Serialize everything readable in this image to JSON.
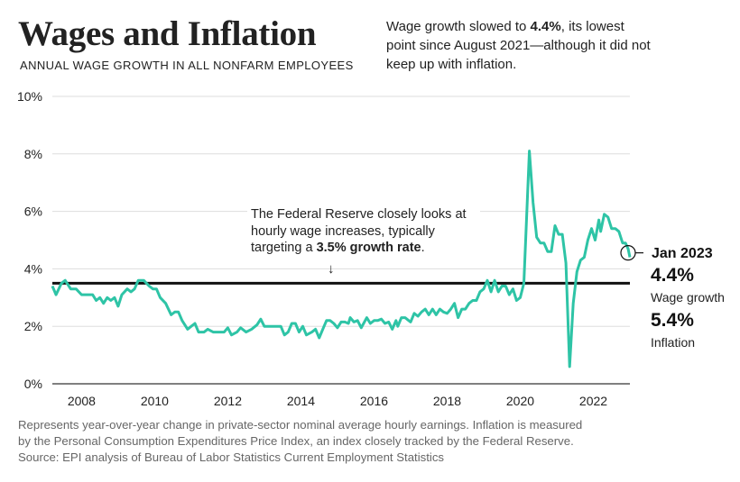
{
  "header": {
    "title": "Wages and Inflation",
    "subtitle": "ANNUAL WAGE GROWTH IN ALL NONFARM EMPLOYEES",
    "dek_before": "Wage growth slowed to ",
    "dek_bold": "4.4%",
    "dek_after": ", its lowest point since August 2021—although it did not keep up with inflation."
  },
  "note": {
    "before": "The Federal Reserve closely looks at hourly wage increases, typically targeting a ",
    "bold": "3.5% growth rate",
    "after": ".",
    "arrow": "↓"
  },
  "annotation": {
    "date": "Jan 2023",
    "wage_value": "4.4%",
    "wage_label": "Wage growth",
    "inflation_value": "5.4%",
    "inflation_label": "Inflation"
  },
  "footer": {
    "line1": "Represents year-over-year change in private-sector nominal average hourly earnings. Inflation is measured",
    "line2": "by the Personal Consumption Expenditures Price Index, an index closely tracked by the Federal Reserve.",
    "line3": "Source: EPI analysis of Bureau of Labor Statistics Current Employment Statistics"
  },
  "colors": {
    "line": "#2ec4a6",
    "target": "#111111",
    "grid": "#dddddd",
    "axis": "#333333"
  },
  "chart_data": {
    "type": "line",
    "title": "Wages and Inflation",
    "subtitle": "Annual wage growth in all nonfarm employees",
    "xlabel": "",
    "ylabel": "",
    "xlim": [
      2007.2,
      2023.0
    ],
    "ylim": [
      0,
      10
    ],
    "y_ticks": [
      {
        "value": 0,
        "label": "0%"
      },
      {
        "value": 2,
        "label": "2%"
      },
      {
        "value": 4,
        "label": "4%"
      },
      {
        "value": 6,
        "label": "6%"
      },
      {
        "value": 8,
        "label": "8%"
      },
      {
        "value": 10,
        "label": "10%"
      }
    ],
    "x_ticks": [
      {
        "value": 2008,
        "label": "2008"
      },
      {
        "value": 2010,
        "label": "2010"
      },
      {
        "value": 2012,
        "label": "2012"
      },
      {
        "value": 2014,
        "label": "2014"
      },
      {
        "value": 2016,
        "label": "2016"
      },
      {
        "value": 2018,
        "label": "2018"
      },
      {
        "value": 2020,
        "label": "2020"
      },
      {
        "value": 2022,
        "label": "2022"
      }
    ],
    "grid": true,
    "reference_line": {
      "value": 3.5,
      "label": "3.5% growth rate"
    },
    "series": [
      {
        "name": "Wage growth",
        "points": [
          [
            2007.2,
            3.4
          ],
          [
            2007.3,
            3.1
          ],
          [
            2007.45,
            3.5
          ],
          [
            2007.55,
            3.6
          ],
          [
            2007.7,
            3.3
          ],
          [
            2007.85,
            3.3
          ],
          [
            2008.0,
            3.1
          ],
          [
            2008.15,
            3.1
          ],
          [
            2008.3,
            3.1
          ],
          [
            2008.4,
            2.9
          ],
          [
            2008.5,
            3.0
          ],
          [
            2008.6,
            2.8
          ],
          [
            2008.7,
            3.0
          ],
          [
            2008.8,
            2.9
          ],
          [
            2008.9,
            3.0
          ],
          [
            2009.0,
            2.7
          ],
          [
            2009.1,
            3.1
          ],
          [
            2009.25,
            3.3
          ],
          [
            2009.35,
            3.2
          ],
          [
            2009.45,
            3.3
          ],
          [
            2009.55,
            3.6
          ],
          [
            2009.7,
            3.6
          ],
          [
            2009.85,
            3.4
          ],
          [
            2009.95,
            3.3
          ],
          [
            2010.05,
            3.3
          ],
          [
            2010.15,
            3.0
          ],
          [
            2010.3,
            2.8
          ],
          [
            2010.45,
            2.4
          ],
          [
            2010.55,
            2.5
          ],
          [
            2010.65,
            2.5
          ],
          [
            2010.75,
            2.2
          ],
          [
            2010.9,
            1.9
          ],
          [
            2011.0,
            2.0
          ],
          [
            2011.1,
            2.1
          ],
          [
            2011.2,
            1.8
          ],
          [
            2011.35,
            1.8
          ],
          [
            2011.45,
            1.9
          ],
          [
            2011.6,
            1.8
          ],
          [
            2011.75,
            1.8
          ],
          [
            2011.9,
            1.8
          ],
          [
            2012.0,
            1.95
          ],
          [
            2012.1,
            1.7
          ],
          [
            2012.25,
            1.8
          ],
          [
            2012.35,
            1.95
          ],
          [
            2012.5,
            1.8
          ],
          [
            2012.65,
            1.9
          ],
          [
            2012.8,
            2.05
          ],
          [
            2012.9,
            2.25
          ],
          [
            2013.0,
            2.0
          ],
          [
            2013.15,
            2.0
          ],
          [
            2013.3,
            2.0
          ],
          [
            2013.45,
            2.0
          ],
          [
            2013.55,
            1.7
          ],
          [
            2013.65,
            1.8
          ],
          [
            2013.75,
            2.1
          ],
          [
            2013.85,
            2.1
          ],
          [
            2013.95,
            1.8
          ],
          [
            2014.05,
            2.0
          ],
          [
            2014.15,
            1.7
          ],
          [
            2014.3,
            1.8
          ],
          [
            2014.4,
            1.9
          ],
          [
            2014.5,
            1.6
          ],
          [
            2014.6,
            1.9
          ],
          [
            2014.7,
            2.2
          ],
          [
            2014.8,
            2.2
          ],
          [
            2014.9,
            2.1
          ],
          [
            2015.0,
            1.95
          ],
          [
            2015.1,
            2.15
          ],
          [
            2015.2,
            2.15
          ],
          [
            2015.3,
            2.1
          ],
          [
            2015.35,
            2.3
          ],
          [
            2015.45,
            2.15
          ],
          [
            2015.55,
            2.2
          ],
          [
            2015.65,
            1.95
          ],
          [
            2015.8,
            2.3
          ],
          [
            2015.9,
            2.1
          ],
          [
            2016.0,
            2.2
          ],
          [
            2016.1,
            2.2
          ],
          [
            2016.2,
            2.25
          ],
          [
            2016.3,
            2.1
          ],
          [
            2016.4,
            2.15
          ],
          [
            2016.5,
            1.9
          ],
          [
            2016.6,
            2.2
          ],
          [
            2016.65,
            2.0
          ],
          [
            2016.75,
            2.3
          ],
          [
            2016.85,
            2.3
          ],
          [
            2016.95,
            2.2
          ],
          [
            2017.0,
            2.15
          ],
          [
            2017.1,
            2.45
          ],
          [
            2017.2,
            2.35
          ],
          [
            2017.3,
            2.5
          ],
          [
            2017.4,
            2.6
          ],
          [
            2017.5,
            2.4
          ],
          [
            2017.6,
            2.6
          ],
          [
            2017.7,
            2.4
          ],
          [
            2017.8,
            2.6
          ],
          [
            2017.9,
            2.5
          ],
          [
            2018.0,
            2.45
          ],
          [
            2018.1,
            2.6
          ],
          [
            2018.2,
            2.8
          ],
          [
            2018.3,
            2.3
          ],
          [
            2018.4,
            2.6
          ],
          [
            2018.5,
            2.6
          ],
          [
            2018.6,
            2.8
          ],
          [
            2018.7,
            2.9
          ],
          [
            2018.8,
            2.9
          ],
          [
            2018.9,
            3.2
          ],
          [
            2019.0,
            3.3
          ],
          [
            2019.1,
            3.6
          ],
          [
            2019.2,
            3.2
          ],
          [
            2019.3,
            3.6
          ],
          [
            2019.4,
            3.2
          ],
          [
            2019.5,
            3.4
          ],
          [
            2019.6,
            3.4
          ],
          [
            2019.7,
            3.1
          ],
          [
            2019.8,
            3.3
          ],
          [
            2019.9,
            2.9
          ],
          [
            2020.0,
            3.0
          ],
          [
            2020.1,
            3.5
          ],
          [
            2020.25,
            8.1
          ],
          [
            2020.35,
            6.3
          ],
          [
            2020.45,
            5.1
          ],
          [
            2020.55,
            4.9
          ],
          [
            2020.65,
            4.9
          ],
          [
            2020.75,
            4.6
          ],
          [
            2020.85,
            4.6
          ],
          [
            2020.95,
            5.5
          ],
          [
            2021.05,
            5.2
          ],
          [
            2021.15,
            5.2
          ],
          [
            2021.25,
            4.2
          ],
          [
            2021.35,
            0.6
          ],
          [
            2021.45,
            2.8
          ],
          [
            2021.55,
            3.9
          ],
          [
            2021.65,
            4.3
          ],
          [
            2021.75,
            4.4
          ],
          [
            2021.85,
            5.0
          ],
          [
            2021.95,
            5.4
          ],
          [
            2022.05,
            5.0
          ],
          [
            2022.15,
            5.7
          ],
          [
            2022.2,
            5.3
          ],
          [
            2022.3,
            5.9
          ],
          [
            2022.4,
            5.8
          ],
          [
            2022.5,
            5.4
          ],
          [
            2022.6,
            5.4
          ],
          [
            2022.7,
            5.3
          ],
          [
            2022.8,
            4.9
          ],
          [
            2022.88,
            4.9
          ],
          [
            2022.95,
            4.7
          ],
          [
            2023.0,
            4.4
          ]
        ]
      }
    ]
  }
}
